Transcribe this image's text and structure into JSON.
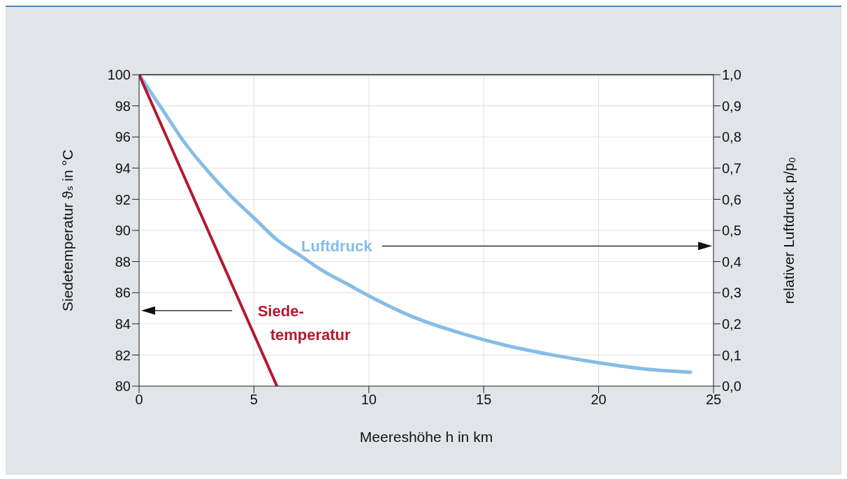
{
  "chart_data": {
    "type": "line",
    "xlabel": "Meereshöhe h in km",
    "ylabel": "Siedetemperatur ϑₛ in °C",
    "y2label": "relativer Luftdruck p/p₀",
    "series": [
      {
        "name": "Luftdruck",
        "color": "#85bde6",
        "axis": "y2",
        "x": [
          0,
          1,
          2,
          3,
          4,
          5,
          6,
          7,
          8,
          9,
          10,
          12,
          14,
          16,
          18,
          20,
          22,
          24
        ],
        "values": [
          1.0,
          0.89,
          0.78,
          0.69,
          0.61,
          0.54,
          0.47,
          0.42,
          0.37,
          0.33,
          0.29,
          0.22,
          0.17,
          0.13,
          0.1,
          0.075,
          0.055,
          0.045
        ]
      },
      {
        "name": "Siede-\ntemperatur",
        "color": "#b5172f",
        "x": [
          0,
          6
        ],
        "values": [
          100,
          80
        ]
      }
    ],
    "xlim": [
      0,
      25
    ],
    "xticks": [
      0,
      5,
      10,
      15,
      20,
      25
    ],
    "ylim": [
      80,
      100
    ],
    "yticks": [
      80,
      82,
      84,
      86,
      88,
      90,
      92,
      94,
      96,
      98,
      100
    ],
    "y2lim": [
      0,
      1
    ],
    "y2ticks": [
      {
        "value": 0,
        "label": "0,0"
      },
      {
        "value": 0.1,
        "label": "0,1"
      },
      {
        "value": 0.2,
        "label": "0,2"
      },
      {
        "value": 0.3,
        "label": "0,3"
      },
      {
        "value": 0.4,
        "label": "0,4"
      },
      {
        "value": 0.5,
        "label": "0,5"
      },
      {
        "value": 0.6,
        "label": "0,6"
      },
      {
        "value": 0.7,
        "label": "0,7"
      },
      {
        "value": 0.8,
        "label": "0,8"
      },
      {
        "value": 0.9,
        "label": "0,9"
      },
      {
        "value": 1,
        "label": "1,0"
      }
    ],
    "grid": true,
    "marker": "none",
    "line_style": "solid"
  }
}
